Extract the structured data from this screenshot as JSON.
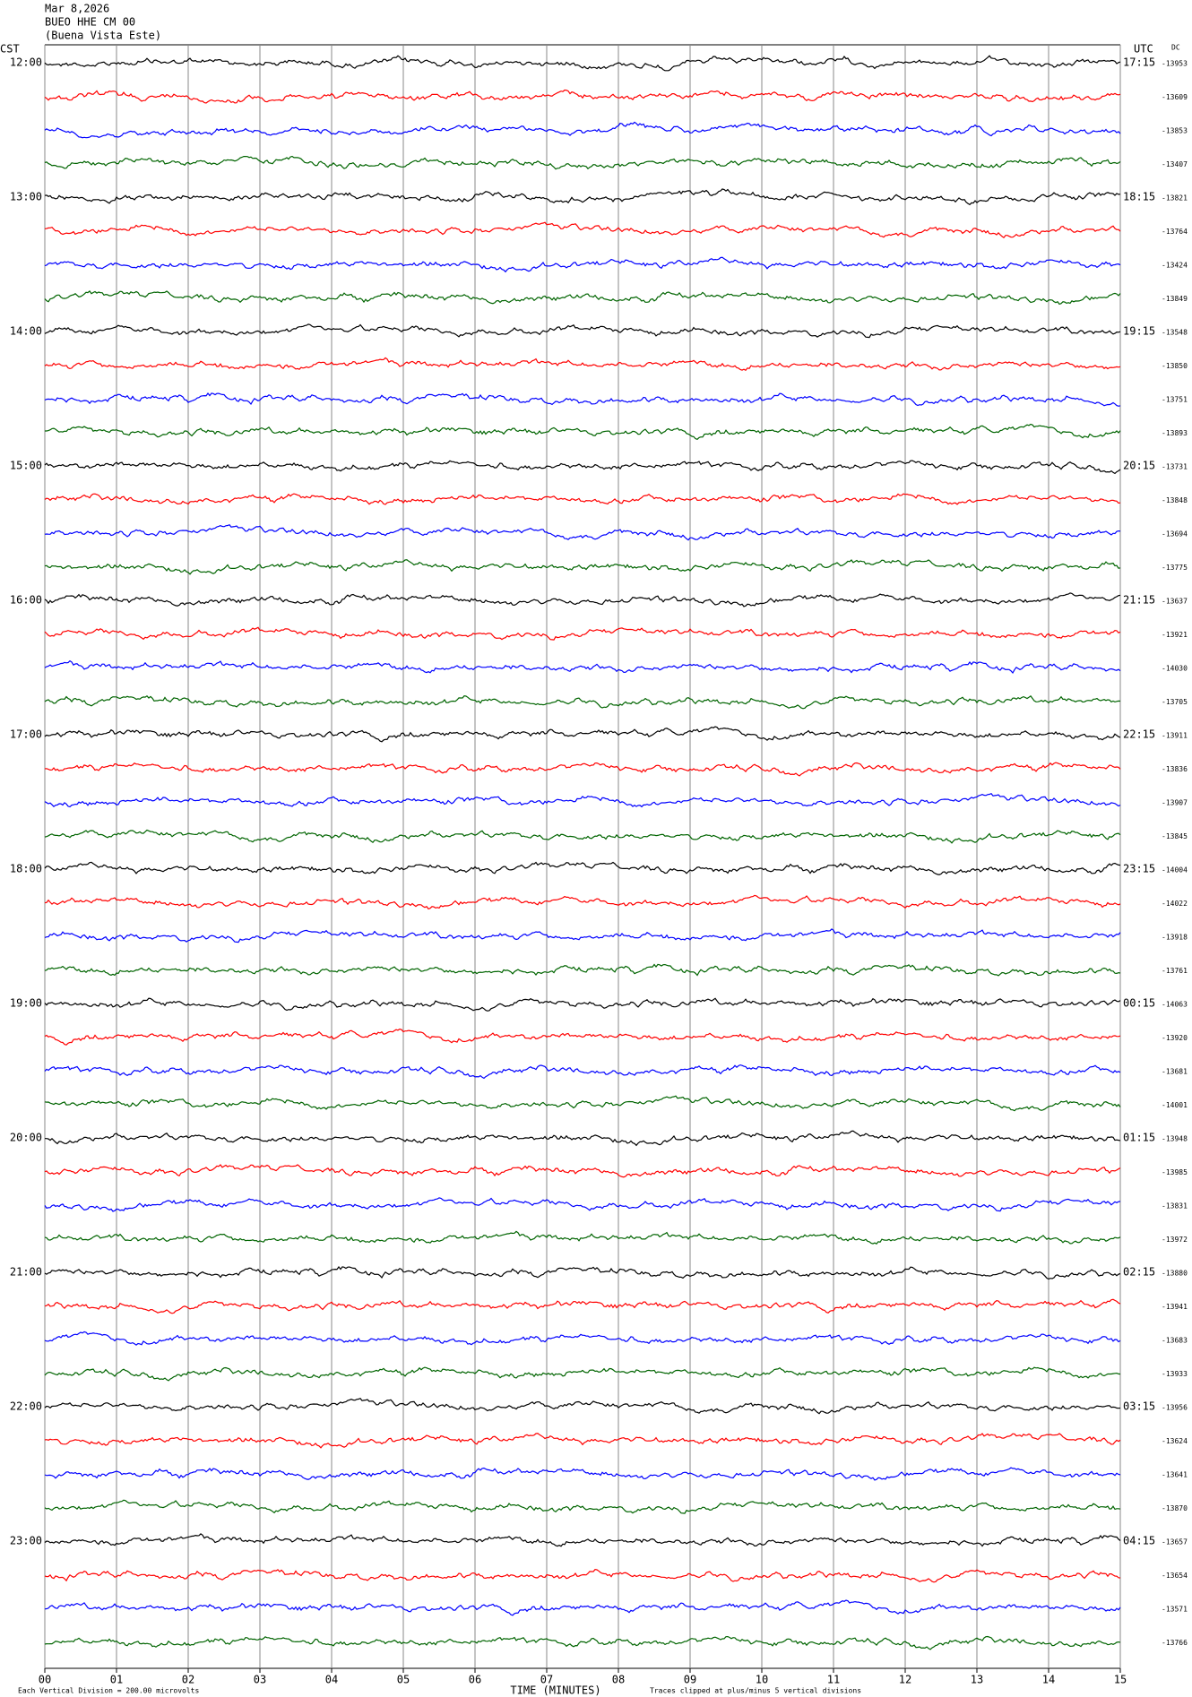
{
  "chart_data": {
    "type": "helicorder",
    "date": "Mar 8,2026",
    "station": "BUEO HHE CM 00",
    "location": "(Buena Vista Este)",
    "left_axis_title": "CST",
    "right_axis_title": "UTC",
    "dc_title": "DC",
    "left_labels": [
      "12:00",
      "13:00",
      "14:00",
      "15:00",
      "16:00",
      "17:00",
      "18:00",
      "19:00",
      "20:00",
      "21:00",
      "22:00",
      "23:00"
    ],
    "right_labels": [
      "17:15",
      "18:15",
      "19:15",
      "20:15",
      "21:15",
      "22:15",
      "23:15",
      "00:15",
      "01:15",
      "02:15",
      "03:15",
      "04:15"
    ],
    "dc_values": [
      -13953,
      -13609,
      -13853,
      -13407,
      -13821,
      -13764,
      -13424,
      -13849,
      -13548,
      -13850,
      -13751,
      -13893,
      -13731,
      -13848,
      -13694,
      -13775,
      -13637,
      -13921,
      -14030,
      -13705,
      -13911,
      -13836,
      -13907,
      -13845,
      -14004,
      -14022,
      -13918,
      -13761,
      -14063,
      -13920,
      -13681,
      -14001,
      -13948,
      -13985,
      -13831,
      -13972,
      -13880,
      -13941,
      -13683,
      -13933,
      -13956,
      -13624,
      -13641,
      -13870,
      -13657,
      -13654,
      -13571,
      -13766
    ],
    "trace_colors": [
      "#000000",
      "#ff0000",
      "#0000ff",
      "#006400"
    ],
    "xlabel": "TIME (MINUTES)",
    "xlim": [
      0,
      15
    ],
    "xticks": [
      {
        "value": 0,
        "label": "00"
      },
      {
        "value": 1,
        "label": "01"
      },
      {
        "value": 2,
        "label": "02"
      },
      {
        "value": 3,
        "label": "03"
      },
      {
        "value": 4,
        "label": "04"
      },
      {
        "value": 5,
        "label": "05"
      },
      {
        "value": 6,
        "label": "06"
      },
      {
        "value": 7,
        "label": "07"
      },
      {
        "value": 8,
        "label": "08"
      },
      {
        "value": 9,
        "label": "09"
      },
      {
        "value": 10,
        "label": "10"
      },
      {
        "value": 11,
        "label": "11"
      },
      {
        "value": 12,
        "label": "12"
      },
      {
        "value": 13,
        "label": "13"
      },
      {
        "value": 14,
        "label": "14"
      },
      {
        "value": 15,
        "label": "15"
      }
    ],
    "scale_note": "Each Vertical Division = 200.00 microvolts",
    "clip_note": "Traces clipped at plus/minus 5 vertical divisions",
    "grid": true
  }
}
